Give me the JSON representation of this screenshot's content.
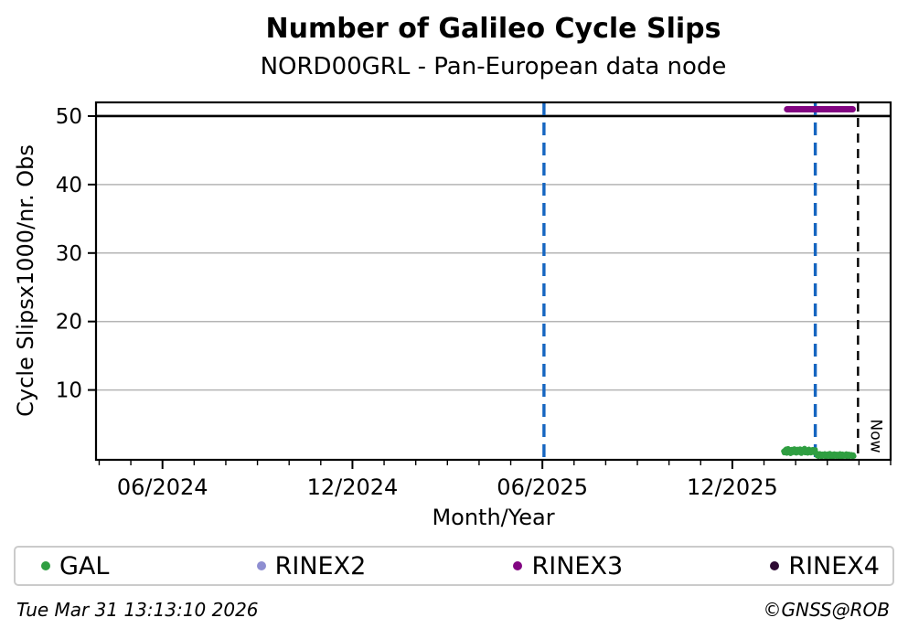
{
  "title": "Number of Galileo Cycle Slips",
  "subtitle": "NORD00GRL - Pan-European data node",
  "footer": {
    "timestamp": "Tue Mar 31 13:13:10 2026",
    "credit": "©GNSS@ROB"
  },
  "legend": {
    "items": [
      {
        "label": "GAL",
        "color": "#2f9e41"
      },
      {
        "label": "RINEX2",
        "color": "#8e8ed1"
      },
      {
        "label": "RINEX3",
        "color": "#820582"
      },
      {
        "label": "RINEX4",
        "color": "#2d0a33"
      }
    ]
  },
  "chart_data": {
    "type": "scatter",
    "title": "Number of Galileo Cycle Slips",
    "subtitle": "NORD00GRL - Pan-European data node",
    "xlabel": "Month/Year",
    "ylabel": "Cycle Slipsx1000/nr. Obs",
    "x_unit": "months since 2024-01 (0 = Jan 2024)",
    "xlim": [
      2.9,
      28.0
    ],
    "ylim": [
      -0.2,
      52.0
    ],
    "yticks": [
      10,
      20,
      30,
      40,
      50
    ],
    "x_major_ticks": [
      {
        "x": 5,
        "label": "06/2024"
      },
      {
        "x": 11,
        "label": "12/2024"
      },
      {
        "x": 17,
        "label": "06/2025"
      },
      {
        "x": 23,
        "label": "12/2025"
      }
    ],
    "x_minor_step": 1,
    "grid": "horizontal",
    "grid_color": "#b4b4b4",
    "hline": {
      "y": 50,
      "color": "#000000",
      "style": "solid"
    },
    "vlines": [
      {
        "x": 17.05,
        "color": "#1565c0",
        "style": "dashed",
        "label": ""
      },
      {
        "x": 25.62,
        "color": "#1565c0",
        "style": "dashed",
        "label": ""
      },
      {
        "x": 26.97,
        "color": "#000000",
        "style": "dashed",
        "label": "Now"
      }
    ],
    "series": [
      {
        "name": "GAL",
        "color": "#2f9e41",
        "marker_radius": 2.8,
        "runs": [
          {
            "x_start": 24.62,
            "x_step": 0.02,
            "y": [
              1.05,
              0.82,
              1.21,
              0.95,
              1.38,
              0.76,
              1.12,
              1.45,
              0.88,
              1.02,
              1.29,
              0.71,
              0.98,
              1.33,
              1.08,
              0.85,
              1.18,
              1.42,
              0.92,
              1.25,
              0.79,
              1.1,
              1.35,
              0.97,
              1.22,
              0.86,
              1.4,
              1.04,
              0.74,
              1.16,
              1.31,
              0.9,
              1.07,
              1.48,
              0.83,
              1.19,
              0.96,
              1.27,
              0.78,
              1.13,
              1.36,
              0.94,
              1.09,
              0.81,
              1.24,
              1.0,
              1.32,
              0.87,
              1.15,
              0.99,
              1.28,
              0.91
            ]
          },
          {
            "x_start": 25.66,
            "x_step": 0.02,
            "y": [
              0.55,
              0.38,
              0.62,
              0.29,
              0.48,
              0.71,
              0.35,
              0.52,
              0.26,
              0.64,
              0.41,
              0.57,
              0.33,
              0.69,
              0.45,
              0.24,
              0.59,
              0.37,
              0.66,
              0.31,
              0.5,
              0.73,
              0.28,
              0.54,
              0.4,
              0.61,
              0.25,
              0.47,
              0.68,
              0.36,
              0.53,
              0.3,
              0.63,
              0.42,
              0.56,
              0.27,
              0.49,
              0.7,
              0.34,
              0.58,
              0.23,
              0.65,
              0.39,
              0.51,
              0.32,
              0.6,
              0.44,
              0.67,
              0.26,
              0.55,
              0.38,
              0.62,
              0.29,
              0.46,
              0.35,
              0.57,
              0.41,
              0.28,
              0.52,
              0.33
            ]
          }
        ]
      },
      {
        "name": "RINEX2",
        "color": "#8e8ed1",
        "runs": []
      },
      {
        "name": "RINEX3",
        "color": "#820582",
        "band": {
          "x_start": 24.73,
          "x_end": 26.8,
          "y": 51,
          "thickness": 7
        }
      },
      {
        "name": "RINEX4",
        "color": "#2d0a33",
        "runs": []
      }
    ]
  }
}
